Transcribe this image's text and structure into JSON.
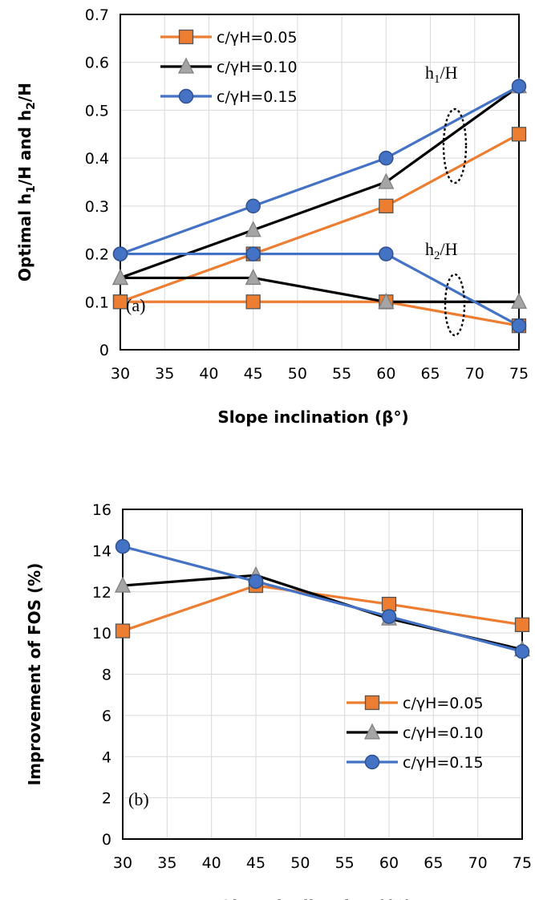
{
  "chart_data": [
    {
      "type": "line",
      "panel_label": "(a)",
      "xlabel": "Slope inclination (β°)",
      "ylabel_parts": [
        "Optimal h",
        "1",
        "/H and h",
        "2",
        "/H"
      ],
      "x": [
        30,
        45,
        60,
        75
      ],
      "xlim": [
        30,
        75
      ],
      "ylim": [
        0,
        0.7
      ],
      "xticks": [
        "30",
        "35",
        "40",
        "45",
        "50",
        "55",
        "60",
        "65",
        "70",
        "75"
      ],
      "yticks": [
        "0",
        "0.1",
        "0.2",
        "0.3",
        "0.4",
        "0.5",
        "0.6",
        "0.7"
      ],
      "grid": true,
      "legend_position": "top-left",
      "annotations": [
        {
          "base": "h",
          "sub": "1",
          "rest": "/H"
        },
        {
          "base": "h",
          "sub": "2",
          "rest": "/H"
        }
      ],
      "series": [
        {
          "name": "c/γH=0.05",
          "marker": "square",
          "color": "#ED7D31",
          "in_legend": true,
          "values": [
            0.1,
            0.2,
            0.3,
            0.45
          ]
        },
        {
          "name": "c/γH=0.10",
          "marker": "triangle",
          "color": "#000000",
          "in_legend": true,
          "values": [
            0.15,
            0.25,
            0.35,
            0.55
          ]
        },
        {
          "name": "c/γH=0.15",
          "marker": "circle",
          "color": "#4472C4",
          "in_legend": true,
          "values": [
            0.2,
            0.3,
            0.4,
            0.55
          ]
        },
        {
          "name": "c/γH=0.05",
          "marker": "square",
          "color": "#ED7D31",
          "in_legend": false,
          "values": [
            0.1,
            0.1,
            0.1,
            0.05
          ]
        },
        {
          "name": "c/γH=0.10",
          "marker": "triangle",
          "color": "#000000",
          "in_legend": false,
          "values": [
            0.15,
            0.15,
            0.1,
            0.1
          ]
        },
        {
          "name": "c/γH=0.15",
          "marker": "circle",
          "color": "#4472C4",
          "in_legend": false,
          "values": [
            0.2,
            0.2,
            0.2,
            0.05
          ]
        }
      ]
    },
    {
      "type": "line",
      "panel_label": "(b)",
      "xlabel": "Slope inclination (β°)",
      "ylabel": "Improvement of FOS (%)",
      "x": [
        30,
        45,
        60,
        75
      ],
      "xlim": [
        30,
        75
      ],
      "ylim": [
        0,
        16
      ],
      "xticks": [
        "30",
        "35",
        "40",
        "45",
        "50",
        "55",
        "60",
        "65",
        "70",
        "75"
      ],
      "yticks": [
        "0",
        "2",
        "4",
        "6",
        "8",
        "10",
        "12",
        "14",
        "16"
      ],
      "grid": true,
      "legend_position": "bottom-right",
      "series": [
        {
          "name": "c/γH=0.05",
          "marker": "square",
          "color": "#ED7D31",
          "in_legend": true,
          "values": [
            10.1,
            12.3,
            11.4,
            10.4
          ]
        },
        {
          "name": "c/γH=0.10",
          "marker": "triangle",
          "color": "#000000",
          "in_legend": true,
          "values": [
            12.3,
            12.8,
            10.7,
            9.2
          ]
        },
        {
          "name": "c/γH=0.15",
          "marker": "circle",
          "color": "#4472C4",
          "in_legend": true,
          "values": [
            14.2,
            12.5,
            10.8,
            9.1
          ]
        }
      ]
    }
  ]
}
